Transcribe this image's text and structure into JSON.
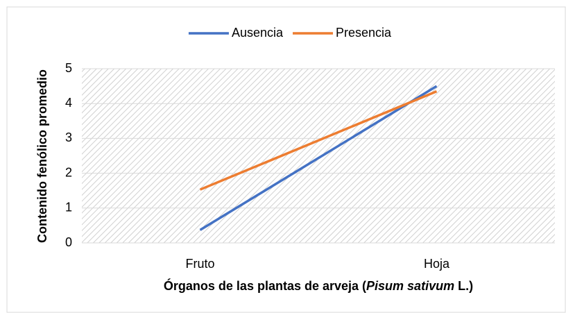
{
  "chart_data": {
    "type": "line",
    "categories": [
      "Fruto",
      "Hoja"
    ],
    "series": [
      {
        "name": "Ausencia",
        "color": "#4472c4",
        "values": [
          0.37,
          4.5
        ]
      },
      {
        "name": "Presencia",
        "color": "#ed7d31",
        "values": [
          1.53,
          4.35
        ]
      }
    ],
    "ylim": [
      0,
      5
    ],
    "yticks": [
      0,
      1,
      2,
      3,
      4,
      5
    ],
    "grid": true,
    "y_label": "Contenido fenólico promedio",
    "x_label": [
      "Órganos de las plantas de arveja (",
      "Pisum sativum",
      " L.)"
    ],
    "legend": "top"
  }
}
